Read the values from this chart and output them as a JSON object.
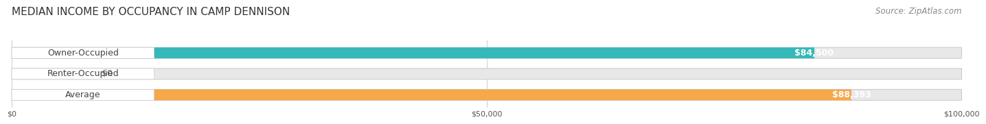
{
  "title": "MEDIAN INCOME BY OCCUPANCY IN CAMP DENNISON",
  "source": "Source: ZipAtlas.com",
  "categories": [
    "Owner-Occupied",
    "Renter-Occupied",
    "Average"
  ],
  "values": [
    84500,
    0,
    88393
  ],
  "bar_colors": [
    "#36b8b8",
    "#c4a8d4",
    "#f5a84c"
  ],
  "bar_labels": [
    "$84,500",
    "$0",
    "$88,393"
  ],
  "xlim": [
    0,
    100000
  ],
  "xticks": [
    0,
    50000,
    100000
  ],
  "xtick_labels": [
    "$0",
    "$50,000",
    "$100,000"
  ],
  "background_color": "#ffffff",
  "bar_bg_color": "#e8e8e8",
  "title_fontsize": 11,
  "source_fontsize": 8.5,
  "label_fontsize": 9,
  "value_fontsize": 9
}
